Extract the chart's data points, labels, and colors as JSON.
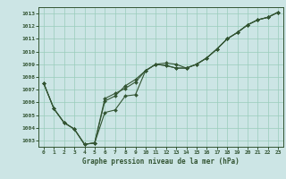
{
  "title": "Graphe pression niveau de la mer (hPa)",
  "background_color": "#cce5e5",
  "grid_color": "#99ccbb",
  "line_color": "#335533",
  "x_ticks": [
    0,
    1,
    2,
    3,
    4,
    5,
    6,
    7,
    8,
    9,
    10,
    11,
    12,
    13,
    14,
    15,
    16,
    17,
    18,
    19,
    20,
    21,
    22,
    23
  ],
  "y_ticks": [
    1003,
    1004,
    1005,
    1006,
    1007,
    1008,
    1009,
    1010,
    1011,
    1012,
    1013
  ],
  "ylim": [
    1002.5,
    1013.5
  ],
  "xlim": [
    -0.5,
    23.5
  ],
  "line1_y": [
    1007.5,
    1005.5,
    1004.4,
    1003.9,
    1002.7,
    1002.8,
    1005.2,
    1005.4,
    1006.5,
    1006.6,
    1008.5,
    1009.0,
    1008.9,
    1008.7,
    1008.7,
    1009.0,
    1009.5,
    1010.2,
    1011.0,
    1011.5,
    1012.1,
    1012.5,
    1012.7,
    1013.1
  ],
  "line2_y": [
    1007.5,
    1005.5,
    1004.4,
    1003.9,
    1002.7,
    1002.8,
    1006.1,
    1006.5,
    1007.3,
    1007.8,
    1008.5,
    1009.0,
    1008.9,
    1008.7,
    1008.7,
    1009.0,
    1009.5,
    1010.2,
    1011.0,
    1011.5,
    1012.1,
    1012.5,
    1012.7,
    1013.1
  ],
  "line3_y": [
    1007.5,
    1005.5,
    1004.4,
    1003.9,
    1002.7,
    1002.8,
    1006.3,
    1006.7,
    1007.1,
    1007.6,
    1008.5,
    1009.0,
    1009.1,
    1009.0,
    1008.7,
    1009.0,
    1009.5,
    1010.2,
    1011.0,
    1011.5,
    1012.1,
    1012.5,
    1012.7,
    1013.1
  ]
}
